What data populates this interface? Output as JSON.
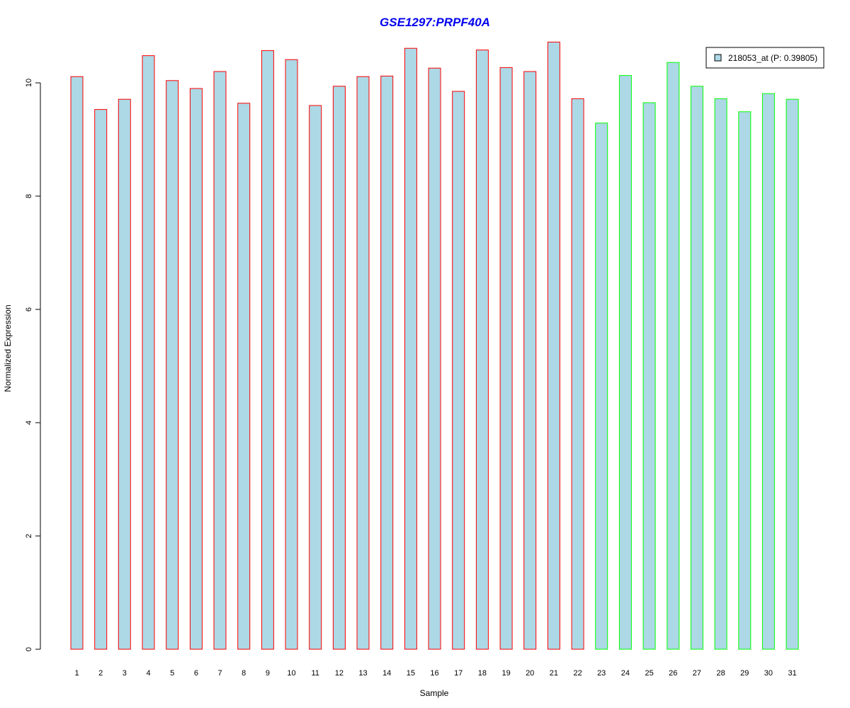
{
  "chart_data": {
    "type": "bar",
    "title": "GSE1297:PRPF40A",
    "xlabel": "Sample",
    "ylabel": "Normalized Expression",
    "ylim": [
      0,
      10.8
    ],
    "yticks": [
      0,
      2,
      4,
      6,
      8,
      10
    ],
    "categories": [
      "1",
      "2",
      "3",
      "4",
      "5",
      "6",
      "7",
      "8",
      "9",
      "10",
      "11",
      "12",
      "13",
      "14",
      "15",
      "16",
      "17",
      "18",
      "19",
      "20",
      "21",
      "22",
      "23",
      "24",
      "25",
      "26",
      "27",
      "28",
      "29",
      "30",
      "31"
    ],
    "series": [
      {
        "name": "218053_at (P: 0.39805)",
        "values": [
          10.11,
          9.53,
          9.71,
          10.48,
          10.04,
          9.9,
          10.2,
          9.64,
          10.57,
          10.41,
          9.6,
          9.94,
          10.11,
          10.12,
          10.61,
          10.26,
          9.85,
          10.58,
          10.27,
          10.2,
          10.72,
          9.72,
          9.29,
          10.13,
          9.65,
          10.36,
          9.94,
          9.72,
          9.49,
          9.81,
          9.71
        ],
        "groups": [
          "a",
          "a",
          "a",
          "a",
          "a",
          "a",
          "a",
          "a",
          "a",
          "a",
          "a",
          "a",
          "a",
          "a",
          "a",
          "a",
          "a",
          "a",
          "a",
          "a",
          "a",
          "a",
          "b",
          "b",
          "b",
          "b",
          "b",
          "b",
          "b",
          "b",
          "b"
        ]
      }
    ],
    "legend": {
      "label": "218053_at (P: 0.39805)",
      "position": "top-right"
    },
    "grid": false,
    "colors": {
      "fill": "#add8e6",
      "border_group_a": "#ff0000",
      "border_group_b": "#00ff00",
      "title": "#0000ee",
      "axis": "#000000"
    }
  }
}
